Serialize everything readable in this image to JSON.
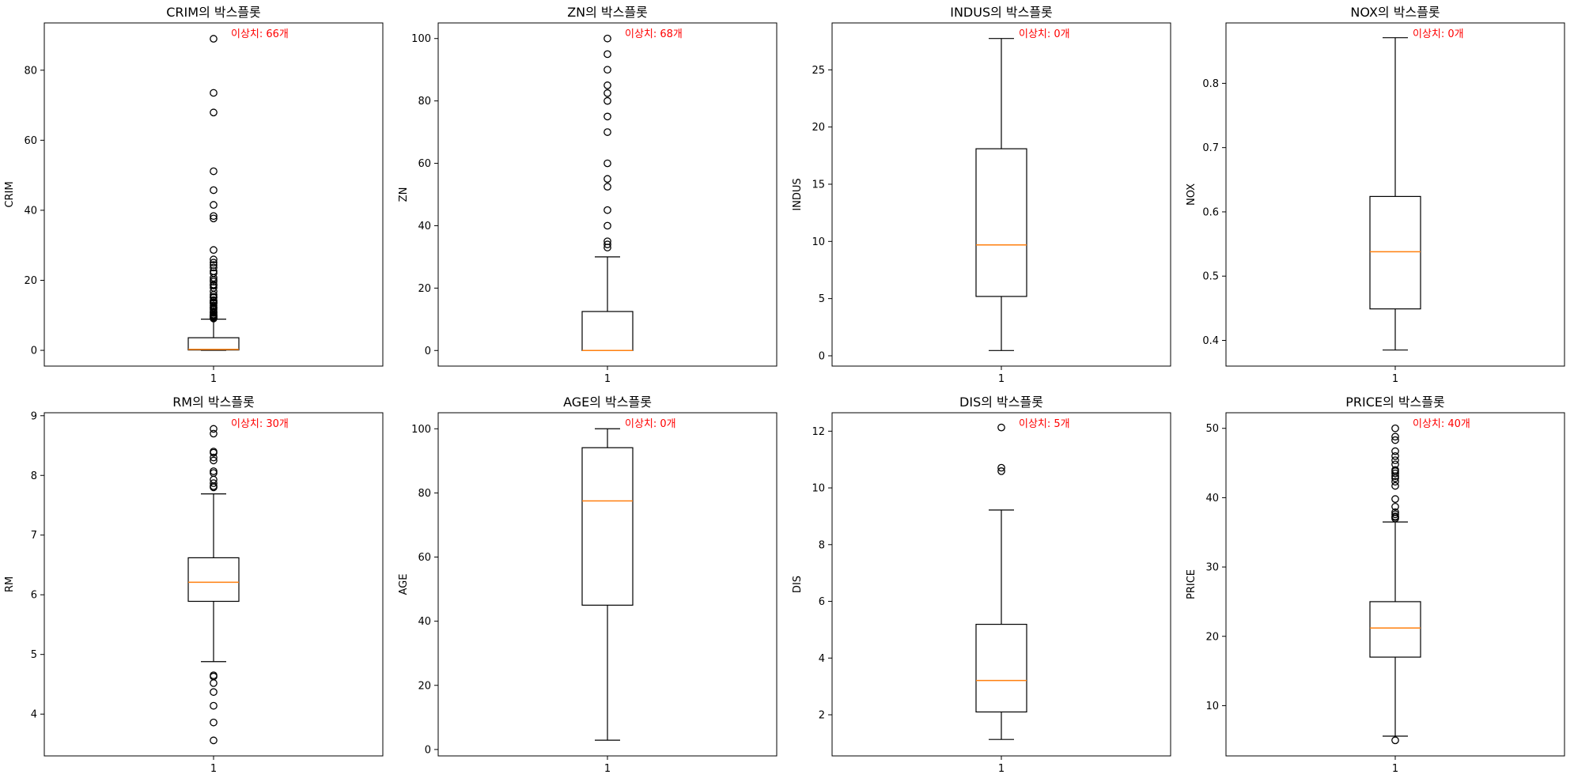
{
  "figure": {
    "style": {
      "median_color": "#ff7f0e",
      "annotation_color": "#ff0000",
      "line_color": "#000000"
    }
  },
  "chart_data": [
    {
      "type": "box",
      "title": "CRIM의 박스플롯",
      "ylabel": "CRIM",
      "categories": [
        "1"
      ],
      "ylim": [
        -4.5,
        93.5
      ],
      "yticks": [
        0,
        20,
        40,
        60,
        80
      ],
      "box": {
        "whisker_low": 0.0,
        "q1": 0.1,
        "median": 0.26,
        "q3": 3.6,
        "whisker_high": 8.9
      },
      "outliers": [
        88.98,
        73.53,
        67.92,
        51.14,
        45.75,
        41.53,
        38.35,
        37.66,
        28.66,
        25.95,
        25.05,
        24.39,
        23.65,
        22.6,
        22.05,
        20.72,
        20.08,
        19.61,
        18.81,
        18.5,
        17.87,
        16.81,
        15.86,
        15.29,
        15.02,
        14.33,
        14.05,
        13.68,
        13.52,
        13.36,
        12.8,
        12.25,
        12.05,
        11.58,
        11.11,
        10.83,
        10.67,
        10.23,
        9.97,
        9.92,
        9.72,
        9.6,
        9.34,
        9.19,
        9.09
      ],
      "annotation": "이상치: 66개"
    },
    {
      "type": "box",
      "title": "ZN의 박스플롯",
      "ylabel": "ZN",
      "categories": [
        "1"
      ],
      "ylim": [
        -5,
        105
      ],
      "yticks": [
        0,
        20,
        40,
        60,
        80,
        100
      ],
      "box": {
        "whisker_low": 0.0,
        "q1": 0.0,
        "median": 0.0,
        "q3": 12.5,
        "whisker_high": 30.0
      },
      "outliers": [
        100,
        95,
        90,
        85,
        82.5,
        80,
        75,
        70,
        60,
        55,
        52.5,
        45,
        40,
        35,
        34,
        33
      ],
      "annotation": "이상치: 68개"
    },
    {
      "type": "box",
      "title": "INDUS의 박스플롯",
      "ylabel": "INDUS",
      "categories": [
        "1"
      ],
      "ylim": [
        -0.9,
        29.1
      ],
      "yticks": [
        0,
        5,
        10,
        15,
        20,
        25
      ],
      "box": {
        "whisker_low": 0.46,
        "q1": 5.19,
        "median": 9.69,
        "q3": 18.1,
        "whisker_high": 27.74
      },
      "outliers": [],
      "annotation": "이상치: 0개"
    },
    {
      "type": "box",
      "title": "NOX의 박스플롯",
      "ylabel": "NOX",
      "categories": [
        "1"
      ],
      "ylim": [
        0.36,
        0.894
      ],
      "yticks": [
        0.4,
        0.5,
        0.6,
        0.7,
        0.8
      ],
      "box": {
        "whisker_low": 0.385,
        "q1": 0.449,
        "median": 0.538,
        "q3": 0.624,
        "whisker_high": 0.871
      },
      "outliers": [],
      "annotation": "이상치: 0개"
    },
    {
      "type": "box",
      "title": "RM의 박스플롯",
      "ylabel": "RM",
      "categories": [
        "1"
      ],
      "ylim": [
        3.3,
        9.05
      ],
      "yticks": [
        4,
        5,
        6,
        7,
        8,
        9
      ],
      "box": {
        "whisker_low": 4.88,
        "q1": 5.89,
        "median": 6.21,
        "q3": 6.62,
        "whisker_high": 7.69
      },
      "outliers": [
        8.78,
        8.7,
        8.4,
        8.38,
        8.3,
        8.25,
        8.07,
        8.04,
        7.93,
        7.87,
        7.82,
        7.8,
        4.65,
        4.63,
        4.52,
        4.37,
        4.14,
        3.86,
        3.56
      ],
      "annotation": "이상치: 30개"
    },
    {
      "type": "box",
      "title": "AGE의 박스플롯",
      "ylabel": "AGE",
      "categories": [
        "1"
      ],
      "ylim": [
        -2,
        105
      ],
      "yticks": [
        0,
        20,
        40,
        60,
        80,
        100
      ],
      "box": {
        "whisker_low": 2.9,
        "q1": 45.0,
        "median": 77.5,
        "q3": 94.1,
        "whisker_high": 100.0
      },
      "outliers": [],
      "annotation": "이상치: 0개"
    },
    {
      "type": "box",
      "title": "DIS의 박스플롯",
      "ylabel": "DIS",
      "categories": [
        "1"
      ],
      "ylim": [
        0.55,
        12.65
      ],
      "yticks": [
        2,
        4,
        6,
        8,
        10,
        12
      ],
      "box": {
        "whisker_low": 1.13,
        "q1": 2.1,
        "median": 3.21,
        "q3": 5.19,
        "whisker_high": 9.22
      },
      "outliers": [
        12.13,
        10.71,
        10.59
      ],
      "annotation": "이상치: 5개"
    },
    {
      "type": "box",
      "title": "PRICE의 박스플롯",
      "ylabel": "PRICE",
      "categories": [
        "1"
      ],
      "ylim": [
        2.75,
        52.25
      ],
      "yticks": [
        10,
        20,
        30,
        40,
        50
      ],
      "box": {
        "whisker_low": 5.6,
        "q1": 17.0,
        "median": 21.2,
        "q3": 25.0,
        "whisker_high": 36.5
      },
      "outliers": [
        50,
        48.8,
        48.3,
        46.7,
        46,
        45.4,
        44.8,
        44,
        43.8,
        43.5,
        43.1,
        42.8,
        42.3,
        41.7,
        39.8,
        38.7,
        37.9,
        37.6,
        37.3,
        37.2,
        37,
        5.0
      ],
      "annotation": "이상치: 40개"
    }
  ]
}
